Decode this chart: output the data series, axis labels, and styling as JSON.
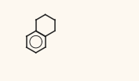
{
  "background_color": "#fdf8f0",
  "atom_color": "#222222",
  "bond_color": "#222222",
  "fig_width": 1.77,
  "fig_height": 1.03,
  "dpi": 100
}
